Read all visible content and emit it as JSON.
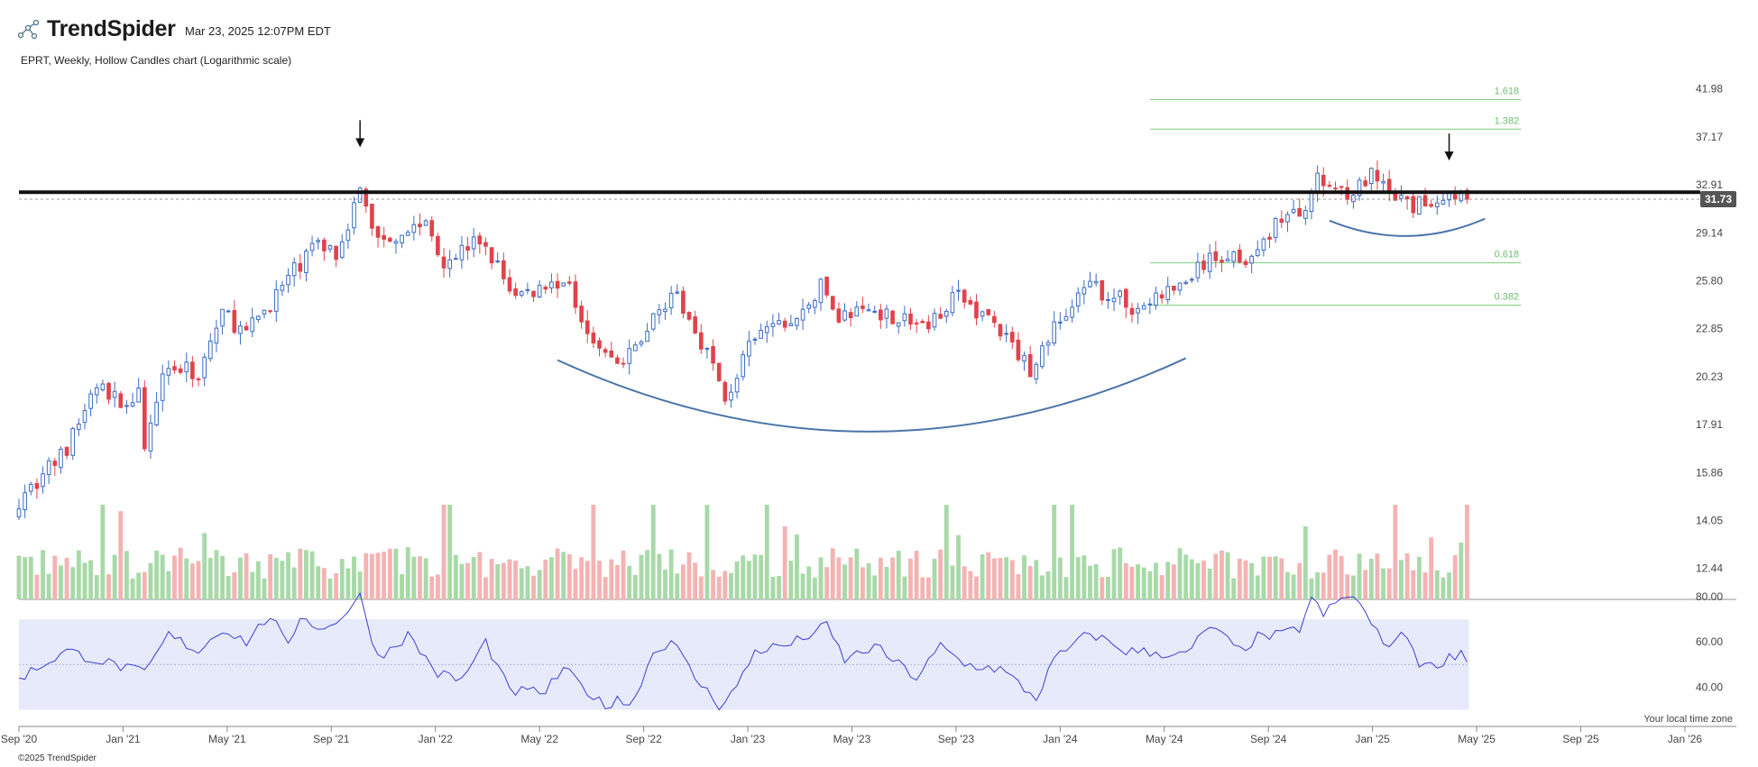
{
  "header": {
    "logo_text": "TrendSpider",
    "timestamp": "Mar 23, 2025 12:07PM EDT",
    "subtitle": "EPRT, Weekly, Hollow Candles chart (Logarithmic scale)"
  },
  "footer": {
    "local_time": "Your local time zone",
    "copyright": "©2025 TrendSpider"
  },
  "colors": {
    "up": "#3b6cc4",
    "down": "#e0434b",
    "vol_up": "#a8d9a8",
    "vol_down": "#f4b3b3",
    "rsi_line": "#3a3fd1",
    "rsi_band": "#e7eafb",
    "fib": "#7ccf7c",
    "curve": "#4a74a8",
    "resistance": "#111111"
  },
  "chart_data": {
    "type": "candlestick",
    "symbol": "EPRT",
    "interval": "Weekly",
    "scale": "log",
    "price_axis_ticks": [
      41.98,
      37.17,
      32.91,
      29.14,
      25.8,
      22.85,
      20.23,
      17.91,
      15.86,
      14.05,
      12.44
    ],
    "ylim": [
      11.5,
      44
    ],
    "last_price": 31.73,
    "x_axis_labels": [
      "Sep '20",
      "Jan '21",
      "May '21",
      "Sep '21",
      "Jan '22",
      "May '22",
      "Sep '22",
      "Jan '23",
      "May '23",
      "Sep '23",
      "Jan '24",
      "May '24",
      "Sep '24",
      "Jan '25",
      "May '25",
      "Sep '25",
      "Jan '26"
    ],
    "x_axis_start": "2020-07-27",
    "x_axis_weeks_per_label": 17.4,
    "x_range": [
      "2020-07-27",
      "2026-01-26"
    ],
    "resistance_level": 32.3,
    "fib_levels": [
      {
        "label": "1.618",
        "price": 40.85
      },
      {
        "label": "1.382",
        "price": 37.9
      },
      {
        "label": "0.618",
        "price": 27.0
      },
      {
        "label": "0.382",
        "price": 24.25
      }
    ],
    "close_path_anchors": [
      {
        "date": "2020-07-27",
        "close": 14.8
      },
      {
        "date": "2020-09-21",
        "close": 16.8
      },
      {
        "date": "2020-10-26",
        "close": 19.8
      },
      {
        "date": "2020-11-23",
        "close": 18.9
      },
      {
        "date": "2020-12-14",
        "close": 19.3
      },
      {
        "date": "2020-12-21",
        "close": 16.5
      },
      {
        "date": "2021-01-11",
        "close": 20.8
      },
      {
        "date": "2021-02-22",
        "close": 20.4
      },
      {
        "date": "2021-03-22",
        "close": 23.8
      },
      {
        "date": "2021-04-19",
        "close": 22.5
      },
      {
        "date": "2021-06-07",
        "close": 25.9
      },
      {
        "date": "2021-07-12",
        "close": 28.5
      },
      {
        "date": "2021-08-02",
        "close": 27.7
      },
      {
        "date": "2021-08-30",
        "close": 32.3
      },
      {
        "date": "2021-09-20",
        "close": 28.6
      },
      {
        "date": "2021-11-15",
        "close": 29.9
      },
      {
        "date": "2021-12-06",
        "close": 27.2
      },
      {
        "date": "2022-01-17",
        "close": 28.6
      },
      {
        "date": "2022-02-28",
        "close": 24.8
      },
      {
        "date": "2022-04-25",
        "close": 25.9
      },
      {
        "date": "2022-06-06",
        "close": 21.6
      },
      {
        "date": "2022-07-04",
        "close": 20.8
      },
      {
        "date": "2022-07-18",
        "close": 21.8
      },
      {
        "date": "2022-08-29",
        "close": 25.1
      },
      {
        "date": "2022-10-10",
        "close": 21.6
      },
      {
        "date": "2022-10-31",
        "close": 19.0
      },
      {
        "date": "2022-11-28",
        "close": 21.7
      },
      {
        "date": "2022-12-19",
        "close": 22.9
      },
      {
        "date": "2023-01-23",
        "close": 23.3
      },
      {
        "date": "2023-02-20",
        "close": 25.4
      },
      {
        "date": "2023-03-13",
        "close": 23.6
      },
      {
        "date": "2023-04-24",
        "close": 24.0
      },
      {
        "date": "2023-06-26",
        "close": 22.9
      },
      {
        "date": "2023-07-24",
        "close": 24.9
      },
      {
        "date": "2023-09-04",
        "close": 23.5
      },
      {
        "date": "2023-10-23",
        "close": 20.6
      },
      {
        "date": "2023-11-20",
        "close": 22.9
      },
      {
        "date": "2024-01-01",
        "close": 25.4
      },
      {
        "date": "2024-01-29",
        "close": 24.8
      },
      {
        "date": "2024-02-26",
        "close": 24.0
      },
      {
        "date": "2024-03-25",
        "close": 24.9
      },
      {
        "date": "2024-04-15",
        "close": 25.4
      },
      {
        "date": "2024-05-13",
        "close": 26.9
      },
      {
        "date": "2024-06-10",
        "close": 27.6
      },
      {
        "date": "2024-07-15",
        "close": 27.4
      },
      {
        "date": "2024-08-05",
        "close": 30.1
      },
      {
        "date": "2024-09-02",
        "close": 30.6
      },
      {
        "date": "2024-09-23",
        "close": 33.2
      },
      {
        "date": "2024-11-04",
        "close": 32.3
      },
      {
        "date": "2024-11-25",
        "close": 33.6
      },
      {
        "date": "2024-12-16",
        "close": 32.0
      },
      {
        "date": "2025-01-13",
        "close": 31.1
      },
      {
        "date": "2025-02-10",
        "close": 31.8
      },
      {
        "date": "2025-03-03",
        "close": 32.3
      },
      {
        "date": "2025-03-17",
        "close": 31.73
      }
    ],
    "volume_pane": {
      "present": true
    },
    "rsi": {
      "axis_ticks": [
        80.0,
        60.0,
        40.0
      ],
      "band": [
        70,
        30
      ],
      "midline": 50,
      "ylim": [
        25,
        80
      ],
      "anchors": [
        {
          "date": "2020-07-27",
          "value": 44
        },
        {
          "date": "2020-09-21",
          "value": 56
        },
        {
          "date": "2020-12-21",
          "value": 46
        },
        {
          "date": "2021-01-18",
          "value": 63
        },
        {
          "date": "2021-02-22",
          "value": 56
        },
        {
          "date": "2021-03-22",
          "value": 66
        },
        {
          "date": "2021-04-19",
          "value": 60
        },
        {
          "date": "2021-05-17",
          "value": 72
        },
        {
          "date": "2021-06-07",
          "value": 57
        },
        {
          "date": "2021-06-21",
          "value": 72
        },
        {
          "date": "2021-07-19",
          "value": 65
        },
        {
          "date": "2021-08-16",
          "value": 74
        },
        {
          "date": "2021-08-30",
          "value": 80
        },
        {
          "date": "2021-09-20",
          "value": 53
        },
        {
          "date": "2021-10-25",
          "value": 63
        },
        {
          "date": "2021-11-29",
          "value": 46
        },
        {
          "date": "2021-12-27",
          "value": 43
        },
        {
          "date": "2022-01-24",
          "value": 60
        },
        {
          "date": "2022-02-21",
          "value": 38
        },
        {
          "date": "2022-04-04",
          "value": 38
        },
        {
          "date": "2022-04-25",
          "value": 48
        },
        {
          "date": "2022-06-13",
          "value": 31
        },
        {
          "date": "2022-06-27",
          "value": 36
        },
        {
          "date": "2022-07-11",
          "value": 31
        },
        {
          "date": "2022-08-08",
          "value": 55
        },
        {
          "date": "2022-08-29",
          "value": 61
        },
        {
          "date": "2022-09-26",
          "value": 44
        },
        {
          "date": "2022-10-24",
          "value": 32
        },
        {
          "date": "2022-11-14",
          "value": 40
        },
        {
          "date": "2022-12-05",
          "value": 56
        },
        {
          "date": "2023-01-16",
          "value": 59
        },
        {
          "date": "2023-02-27",
          "value": 67
        },
        {
          "date": "2023-03-20",
          "value": 52
        },
        {
          "date": "2023-04-24",
          "value": 58
        },
        {
          "date": "2023-06-12",
          "value": 44
        },
        {
          "date": "2023-07-10",
          "value": 58
        },
        {
          "date": "2023-08-07",
          "value": 50
        },
        {
          "date": "2023-09-18",
          "value": 48
        },
        {
          "date": "2023-10-30",
          "value": 35
        },
        {
          "date": "2023-11-20",
          "value": 52
        },
        {
          "date": "2024-01-01",
          "value": 64
        },
        {
          "date": "2024-02-12",
          "value": 56
        },
        {
          "date": "2024-03-25",
          "value": 55
        },
        {
          "date": "2024-04-22",
          "value": 54
        },
        {
          "date": "2024-05-20",
          "value": 67
        },
        {
          "date": "2024-06-24",
          "value": 56
        },
        {
          "date": "2024-07-15",
          "value": 62
        },
        {
          "date": "2024-08-12",
          "value": 63
        },
        {
          "date": "2024-09-02",
          "value": 66
        },
        {
          "date": "2024-09-16",
          "value": 79
        },
        {
          "date": "2024-09-30",
          "value": 72
        },
        {
          "date": "2024-10-14",
          "value": 77
        },
        {
          "date": "2024-11-04",
          "value": 81
        },
        {
          "date": "2024-11-25",
          "value": 68
        },
        {
          "date": "2024-12-09",
          "value": 59
        },
        {
          "date": "2025-01-06",
          "value": 63
        },
        {
          "date": "2025-01-20",
          "value": 51
        },
        {
          "date": "2025-02-03",
          "value": 49
        },
        {
          "date": "2025-02-24",
          "value": 53
        },
        {
          "date": "2025-03-10",
          "value": 56
        },
        {
          "date": "2025-03-17",
          "value": 51
        }
      ]
    }
  }
}
